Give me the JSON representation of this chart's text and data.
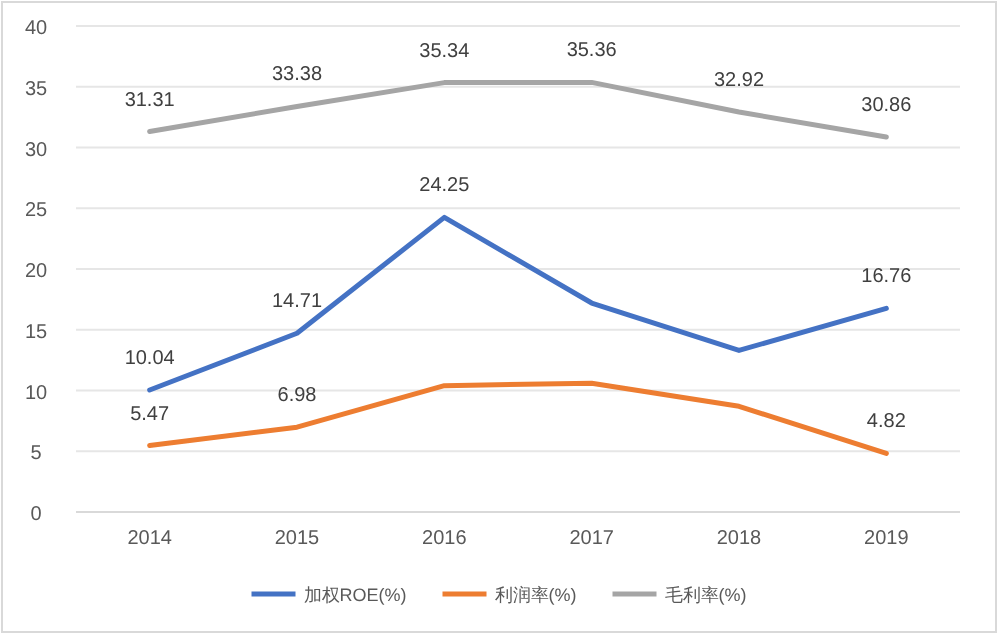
{
  "chart_data": {
    "type": "line",
    "categories": [
      "2014",
      "2015",
      "2016",
      "2017",
      "2018",
      "2019"
    ],
    "series": [
      {
        "name": "加权ROE(%)",
        "color": "#4472c4",
        "values": [
          10.04,
          14.71,
          24.25,
          17.2,
          13.3,
          16.76
        ],
        "value_labels": [
          "10.04",
          "14.71",
          "24.25",
          null,
          null,
          "16.76"
        ]
      },
      {
        "name": "利润率(%)",
        "color": "#ed7d31",
        "values": [
          5.47,
          6.98,
          10.4,
          10.6,
          8.7,
          4.82
        ],
        "value_labels": [
          "5.47",
          "6.98",
          null,
          null,
          null,
          "4.82"
        ]
      },
      {
        "name": "毛利率(%)",
        "color": "#a5a5a5",
        "values": [
          31.31,
          33.38,
          35.34,
          35.36,
          32.92,
          30.86
        ],
        "value_labels": [
          "31.31",
          "33.38",
          "35.34",
          "35.36",
          "32.92",
          "30.86"
        ]
      }
    ],
    "ylim": [
      0,
      40
    ],
    "yticks": [
      0,
      5,
      10,
      15,
      20,
      25,
      30,
      35,
      40
    ],
    "grid": "y",
    "legend": "bottom",
    "marker": "none",
    "line_style": "solid"
  }
}
